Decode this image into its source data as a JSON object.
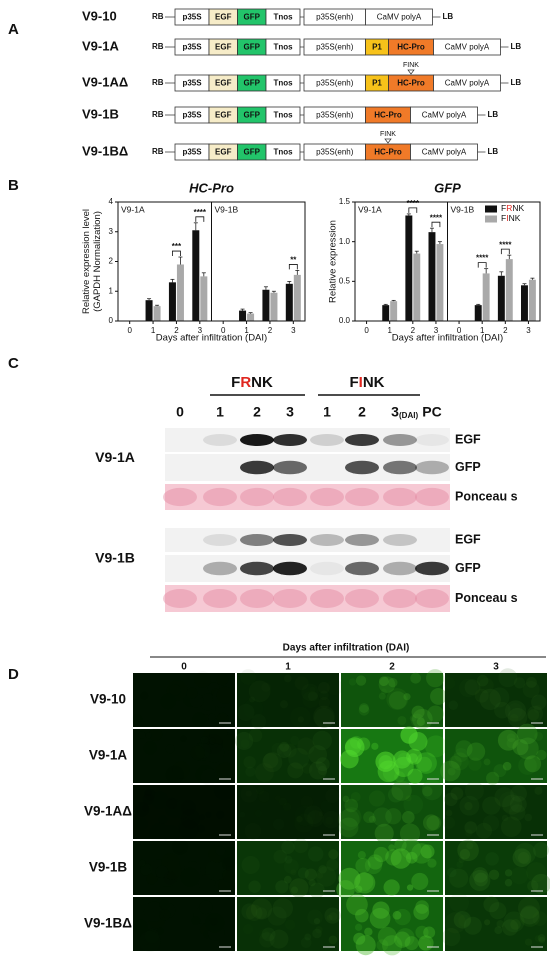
{
  "panel_labels": [
    "A",
    "B",
    "C",
    "D"
  ],
  "highlight_color": "#e0261f",
  "constructs": [
    {
      "name": "V9-10",
      "left": "RB",
      "right": "LB",
      "parts": [
        {
          "label": "p35S",
          "color": "#ffffff"
        },
        {
          "label": "EGF",
          "color": "#f6ecc8"
        },
        {
          "label": "GFP",
          "color": "#22c46a"
        },
        {
          "label": "Tnos",
          "color": "#ffffff"
        },
        {
          "label": "p35S(enh)",
          "color": "#ffffff"
        },
        {
          "label": "CaMV polyA",
          "color": "#ffffff"
        }
      ]
    },
    {
      "name": "V9-1A",
      "left": "RB",
      "right": "LB",
      "parts": [
        {
          "label": "p35S",
          "color": "#ffffff"
        },
        {
          "label": "EGF",
          "color": "#f6ecc8"
        },
        {
          "label": "GFP",
          "color": "#22c46a"
        },
        {
          "label": "Tnos",
          "color": "#ffffff"
        },
        {
          "label": "p35S(enh)",
          "color": "#ffffff"
        },
        {
          "label": "P1",
          "color": "#f7c21a"
        },
        {
          "label": "HC-Pro",
          "color": "#f07a28"
        },
        {
          "label": "CaMV polyA",
          "color": "#ffffff"
        }
      ]
    },
    {
      "name": "V9-1AΔ",
      "left": "RB",
      "right": "LB",
      "parts": [
        {
          "label": "p35S",
          "color": "#ffffff"
        },
        {
          "label": "EGF",
          "color": "#f6ecc8"
        },
        {
          "label": "GFP",
          "color": "#22c46a"
        },
        {
          "label": "Tnos",
          "color": "#ffffff"
        },
        {
          "label": "p35S(enh)",
          "color": "#ffffff"
        },
        {
          "label": "P1",
          "color": "#f7c21a"
        },
        {
          "label": "HC-Pro",
          "color": "#f07a28",
          "mark": "FINK"
        },
        {
          "label": "CaMV polyA",
          "color": "#ffffff"
        }
      ]
    },
    {
      "name": "V9-1B",
      "left": "RB",
      "right": "LB",
      "parts": [
        {
          "label": "p35S",
          "color": "#ffffff"
        },
        {
          "label": "EGF",
          "color": "#f6ecc8"
        },
        {
          "label": "GFP",
          "color": "#22c46a"
        },
        {
          "label": "Tnos",
          "color": "#ffffff"
        },
        {
          "label": "p35S(enh)",
          "color": "#ffffff"
        },
        {
          "label": "HC-Pro",
          "color": "#f07a28"
        },
        {
          "label": "CaMV polyA",
          "color": "#ffffff"
        }
      ]
    },
    {
      "name": "V9-1BΔ",
      "left": "RB",
      "right": "LB",
      "parts": [
        {
          "label": "p35S",
          "color": "#ffffff"
        },
        {
          "label": "EGF",
          "color": "#f6ecc8"
        },
        {
          "label": "GFP",
          "color": "#22c46a"
        },
        {
          "label": "Tnos",
          "color": "#ffffff"
        },
        {
          "label": "p35S(enh)",
          "color": "#ffffff"
        },
        {
          "label": "HC-Pro",
          "color": "#f07a28",
          "mark": "FINK"
        },
        {
          "label": "CaMV polyA",
          "color": "#ffffff"
        }
      ]
    }
  ],
  "chart_data": [
    {
      "type": "bar",
      "title": "HC-Pro",
      "ylabel": [
        "Relative expression level",
        "(GAPDH Normalization)"
      ],
      "xlabel": "Days after infiltration (DAI)",
      "ylim": [
        0,
        4
      ],
      "yticks": [
        0,
        1,
        2,
        3,
        4
      ],
      "panels": [
        {
          "label": "V9-1A",
          "categories": [
            "0",
            "1",
            "2",
            "3"
          ],
          "series": [
            {
              "color": "#111111",
              "values": [
                0,
                0.7,
                1.3,
                3.05
              ],
              "errors": [
                0,
                0.05,
                0.1,
                0.25
              ]
            },
            {
              "color": "#a9a9a9",
              "values": [
                0,
                0.5,
                1.9,
                1.5
              ],
              "errors": [
                0,
                0.03,
                0.25,
                0.12
              ]
            }
          ],
          "significance": [
            null,
            null,
            "***",
            "****"
          ]
        },
        {
          "label": "V9-1B",
          "categories": [
            "0",
            "1",
            "2",
            "3"
          ],
          "series": [
            {
              "color": "#111111",
              "values": [
                0,
                0.35,
                1.05,
                1.25
              ],
              "errors": [
                0,
                0.05,
                0.1,
                0.08
              ]
            },
            {
              "color": "#a9a9a9",
              "values": [
                0,
                0.25,
                0.95,
                1.55
              ],
              "errors": [
                0,
                0.03,
                0.05,
                0.15
              ]
            }
          ],
          "significance": [
            null,
            null,
            null,
            "**"
          ]
        }
      ]
    },
    {
      "type": "bar",
      "title": "GFP",
      "ylabel": [
        "Relative expression"
      ],
      "xlabel": "Days after infiltration (DAI)",
      "ylim": [
        0,
        1.5
      ],
      "yticks": [
        {
          "value": 0,
          "label": "0.0"
        },
        0.5,
        {
          "value": 1,
          "label": "1.0"
        },
        1.5
      ],
      "legend": "top-right",
      "panels": [
        {
          "label": "V9-1A",
          "categories": [
            "0",
            "1",
            "2",
            "3"
          ],
          "series": [
            {
              "name": "FRNK",
              "color": "#111111",
              "values": [
                0,
                0.2,
                1.33,
                1.12
              ],
              "errors": [
                0,
                0.01,
                0.02,
                0.05
              ]
            },
            {
              "name": "FINK",
              "color": "#a9a9a9",
              "values": [
                0,
                0.25,
                0.85,
                0.97
              ],
              "errors": [
                0,
                0.01,
                0.03,
                0.03
              ]
            }
          ],
          "significance": [
            null,
            null,
            "****",
            "****"
          ]
        },
        {
          "label": "V9-1B",
          "categories": [
            "0",
            "1",
            "2",
            "3"
          ],
          "series": [
            {
              "name": "FRNK",
              "color": "#111111",
              "values": [
                0,
                0.2,
                0.57,
                0.45
              ],
              "errors": [
                0,
                0.01,
                0.05,
                0.02
              ]
            },
            {
              "name": "FINK",
              "color": "#a9a9a9",
              "values": [
                0,
                0.6,
                0.78,
                0.52
              ],
              "errors": [
                0,
                0.06,
                0.05,
                0.02
              ]
            }
          ],
          "significance": [
            null,
            "****",
            "****",
            null
          ]
        }
      ]
    }
  ],
  "blot": {
    "groups": [
      "FRNK",
      "FINK"
    ],
    "lanes": [
      "0",
      "1",
      "2",
      "3",
      "1",
      "2",
      "3",
      "PC"
    ],
    "lane_unit": "(DAI)",
    "blocks": [
      {
        "name": "V9-1A",
        "rows": [
          "EGF",
          "GFP",
          "Ponceau s"
        ]
      },
      {
        "name": "V9-1B",
        "rows": [
          "EGF",
          "GFP",
          "Ponceau s"
        ]
      }
    ]
  },
  "microscopy": {
    "title": "Days after infiltration (DAI)",
    "columns": [
      "0",
      "1",
      "2",
      "3"
    ],
    "rows": [
      "V9-10",
      "V9-1A",
      "V9-1AΔ",
      "V9-1B",
      "V9-1BΔ"
    ]
  }
}
